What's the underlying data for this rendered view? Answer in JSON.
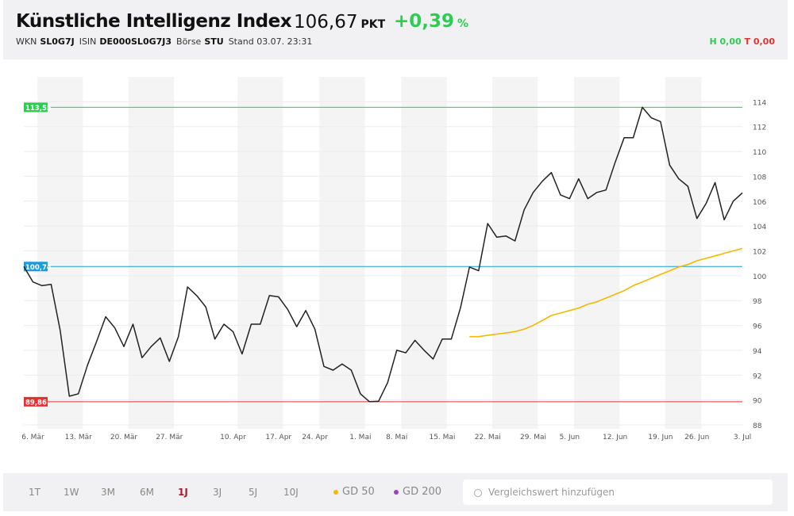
{
  "header": {
    "title": "Künstliche Intelligenz Index",
    "price": "106,67",
    "unit": "PKT",
    "change": "+0,39",
    "change_unit": "%",
    "meta": [
      {
        "key": "WKN",
        "value": "SL0G7J"
      },
      {
        "key": "ISIN",
        "value": "DE000SL0G7J3"
      },
      {
        "key": "Börse",
        "value": "STU"
      }
    ],
    "stand": "Stand 03.07. 23:31",
    "high": "H 0,00",
    "low": "T 0,00"
  },
  "chart_data": {
    "type": "line",
    "categories": [
      null,
      "6. Mär",
      null,
      null,
      null,
      null,
      "13. Mär",
      null,
      null,
      null,
      null,
      "20. Mär",
      null,
      null,
      null,
      null,
      "27. Mär",
      null,
      null,
      null,
      null,
      null,
      null,
      "10. Apr",
      null,
      null,
      null,
      null,
      "17. Apr",
      null,
      null,
      null,
      "24. Apr",
      null,
      null,
      null,
      null,
      "1. Mai",
      null,
      null,
      null,
      "8. Mai",
      null,
      null,
      null,
      null,
      "15. Mai",
      null,
      null,
      null,
      null,
      "22. Mai",
      null,
      null,
      null,
      null,
      "29. Mai",
      null,
      null,
      null,
      "5. Jun",
      null,
      null,
      null,
      null,
      "12. Jun",
      null,
      null,
      null,
      null,
      "19. Jun",
      null,
      null,
      null,
      "26. Jun",
      null,
      null,
      null,
      null,
      "3. Jul"
    ],
    "series": [
      {
        "color": "#222222",
        "values": [
          100.74,
          99.5,
          99.2,
          99.3,
          95.6,
          90.3,
          90.5,
          92.8,
          94.7,
          96.7,
          95.8,
          94.3,
          96.1,
          93.4,
          94.3,
          95.0,
          93.1,
          95.1,
          99.1,
          98.4,
          97.5,
          94.9,
          96.1,
          95.5,
          93.7,
          96.1,
          96.1,
          98.4,
          98.3,
          97.3,
          95.9,
          97.2,
          95.7,
          92.7,
          92.4,
          92.9,
          92.4,
          90.5,
          89.86,
          89.9,
          91.4,
          94.0,
          93.8,
          94.8,
          94.0,
          93.3,
          94.9,
          94.9,
          97.4,
          100.7,
          100.4,
          104.2,
          103.1,
          103.2,
          102.8,
          105.3,
          106.7,
          107.6,
          108.3,
          106.5,
          106.2,
          107.8,
          106.2,
          106.7,
          106.9,
          109.1,
          111.1,
          111.1,
          113.55,
          112.7,
          112.4,
          108.9,
          107.8,
          107.2,
          104.6,
          105.8,
          107.5,
          104.5,
          106.0,
          106.67
        ]
      },
      {
        "name": "GD 50",
        "color": "#f5b800",
        "values": [
          null,
          null,
          null,
          null,
          null,
          null,
          null,
          null,
          null,
          null,
          null,
          null,
          null,
          null,
          null,
          null,
          null,
          null,
          null,
          null,
          null,
          null,
          null,
          null,
          null,
          null,
          null,
          null,
          null,
          null,
          null,
          null,
          null,
          null,
          null,
          null,
          null,
          null,
          null,
          null,
          null,
          null,
          null,
          null,
          null,
          null,
          null,
          null,
          null,
          95.1,
          95.1,
          95.2,
          95.3,
          95.4,
          95.5,
          95.7,
          96.0,
          96.4,
          96.8,
          97.0,
          97.2,
          97.4,
          97.7,
          97.9,
          98.2,
          98.5,
          98.8,
          99.2,
          99.5,
          99.8,
          100.1,
          100.4,
          100.7,
          100.9,
          101.2,
          101.4,
          101.6,
          101.8,
          102.0,
          102.2
        ]
      }
    ],
    "reference_lines": [
      {
        "value": 113.55,
        "label": "113,55",
        "color": "#2ecc52"
      },
      {
        "value": 100.74,
        "label": "100,74",
        "color": "#1a9be0"
      },
      {
        "value": 89.86,
        "label": "89,86",
        "color": "#e53030"
      }
    ],
    "ylim": [
      88,
      116
    ],
    "yticks": [
      88,
      90,
      92,
      94,
      96,
      98,
      100,
      102,
      104,
      106,
      108,
      110,
      112,
      114
    ],
    "grid": true
  },
  "footer": {
    "ranges": [
      "1T",
      "1W",
      "3M",
      "6M",
      "1J",
      "3J",
      "5J",
      "10J"
    ],
    "active": "1J",
    "indicators": [
      {
        "name": "GD 200",
        "color": "#a040c0"
      }
    ],
    "search_placeholder": "Vergleichswert hinzufügen"
  }
}
